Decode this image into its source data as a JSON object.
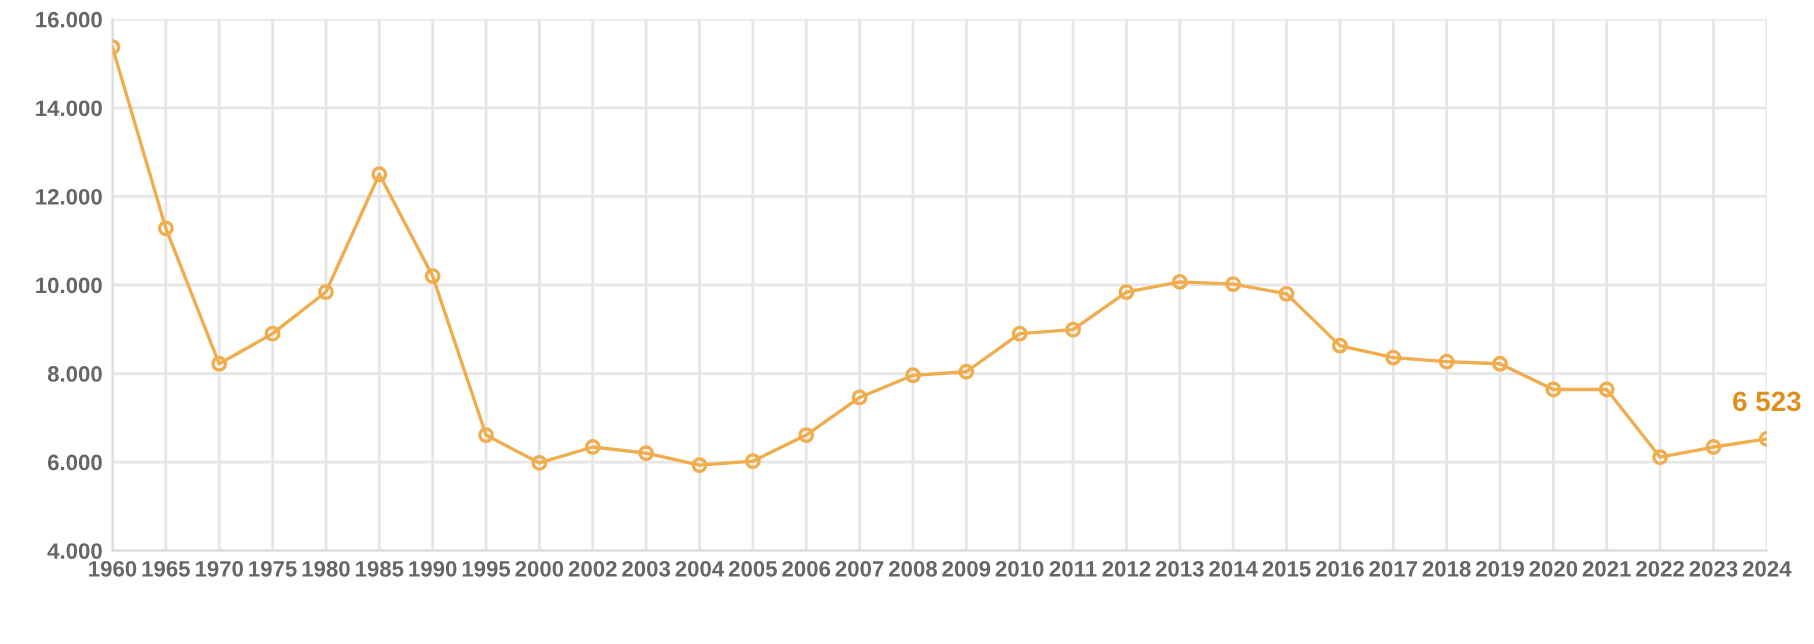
{
  "chart_data": {
    "type": "line",
    "categories": [
      "1960",
      "1965",
      "1970",
      "1975",
      "1980",
      "1985",
      "1990",
      "1995",
      "2000",
      "2002",
      "2003",
      "2004",
      "2005",
      "2006",
      "2007",
      "2008",
      "2009",
      "2010",
      "2011",
      "2012",
      "2013",
      "2014",
      "2015",
      "2016",
      "2017",
      "2018",
      "2019",
      "2020",
      "2021",
      "2022",
      "2023",
      "2024"
    ],
    "series": [
      {
        "color": "#f0ad4e",
        "values": [
          15370,
          11280,
          8220,
          8900,
          9840,
          12500,
          10200,
          6610,
          5980,
          6340,
          6200,
          5930,
          6020,
          6610,
          7460,
          7960,
          8040,
          8900,
          8990,
          9840,
          10070,
          10020,
          9800,
          8630,
          8360,
          8270,
          8220,
          7640,
          7640,
          6110,
          6340,
          6523
        ],
        "value_labels": [
          null,
          null,
          null,
          null,
          null,
          null,
          null,
          null,
          null,
          null,
          null,
          null,
          null,
          null,
          null,
          null,
          null,
          null,
          null,
          null,
          null,
          null,
          null,
          null,
          null,
          null,
          null,
          null,
          null,
          null,
          null,
          "6 523"
        ]
      }
    ],
    "ylim": [
      4000,
      16000
    ],
    "yticks": [
      {
        "value": 4000,
        "label": "4.000"
      },
      {
        "value": 6000,
        "label": "6.000"
      },
      {
        "value": 8000,
        "label": "8.000"
      },
      {
        "value": 10000,
        "label": "10.000"
      },
      {
        "value": 12000,
        "label": "12.000"
      },
      {
        "value": 14000,
        "label": "14.000"
      },
      {
        "value": 16000,
        "label": "16.000"
      }
    ],
    "grid": true,
    "marker": "circle",
    "line_style": "solid",
    "legend": false
  }
}
